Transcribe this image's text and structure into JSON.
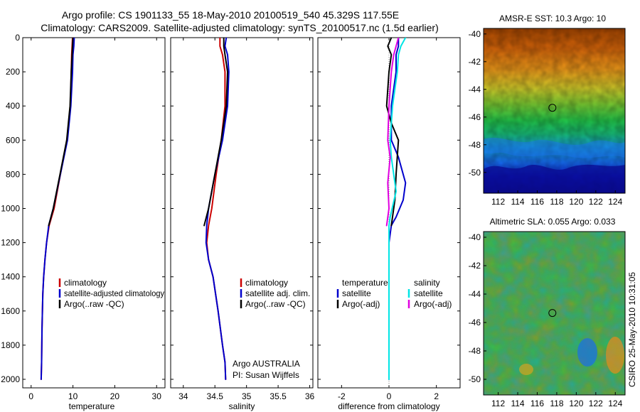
{
  "figure": {
    "title_line1": "Argo profile: CS 1901133_55 18-May-2010 20100519_540 45.329S 117.55E",
    "title_line2": "Climatology: CARS2009. Satellite-adjusted climatology: synTS_20100517.nc (1.5d earlier)",
    "side_caption": "CSIRO 25-May-2010 10:31:05"
  },
  "colors": {
    "climatology": "#cc0000",
    "satellite": "#0000cc",
    "argo": "#000000",
    "sal_satellite": "#00e5e5",
    "sal_argo": "#e000e0"
  },
  "chart_data": [
    {
      "type": "line",
      "name": "temperature-profile",
      "xlabel": "temperature",
      "ylabel": "",
      "xlim": [
        -2,
        32
      ],
      "ylim": [
        2050,
        0
      ],
      "xticks": [
        0,
        10,
        20,
        30
      ],
      "yticks": [
        0,
        200,
        400,
        600,
        800,
        1000,
        1200,
        1400,
        1600,
        1800,
        2000
      ],
      "legend": [
        "climatology",
        "satellite-adjusted climatology",
        "Argo(..raw -QC)"
      ],
      "series": [
        {
          "name": "climatology",
          "color": "#cc0000",
          "x": [
            9.9,
            9.8,
            9.7,
            9.6,
            9.4,
            8.6,
            7.0,
            5.5,
            4.3,
            3.7,
            3.3,
            3.0,
            2.8,
            2.6,
            2.5,
            2.4
          ],
          "y": [
            0,
            50,
            100,
            200,
            400,
            600,
            800,
            1000,
            1100,
            1200,
            1300,
            1400,
            1500,
            1700,
            1900,
            2000
          ]
        },
        {
          "name": "satellite-adjusted climatology",
          "color": "#0000cc",
          "x": [
            10.3,
            10.2,
            10.0,
            9.9,
            9.5,
            8.7,
            7.0,
            5.3,
            4.2,
            3.7,
            3.3,
            3.0,
            2.8,
            2.6,
            2.5,
            2.4
          ],
          "y": [
            0,
            50,
            100,
            200,
            400,
            600,
            800,
            1000,
            1100,
            1200,
            1300,
            1400,
            1500,
            1700,
            1900,
            2000
          ]
        },
        {
          "name": "Argo(..raw -QC)",
          "color": "#000000",
          "x": [
            10.0,
            9.9,
            9.8,
            9.6,
            9.3,
            8.5,
            6.9,
            5.3,
            4.2
          ],
          "y": [
            0,
            50,
            100,
            200,
            400,
            600,
            800,
            1000,
            1100
          ]
        }
      ]
    },
    {
      "type": "line",
      "name": "salinity-profile",
      "xlabel": "salinity",
      "ylabel": "",
      "xlim": [
        33.8,
        36.05
      ],
      "ylim": [
        2050,
        0
      ],
      "xticks": [
        34,
        34.5,
        35,
        35.5,
        36
      ],
      "xticklabels": [
        "34",
        "34.5",
        "35",
        "35.5",
        "36"
      ],
      "legend": [
        "climatology",
        "satellite adj. clim.",
        "Argo(..raw -QC)"
      ],
      "annotation_line1": "Argo AUSTRALIA",
      "annotation_line2": "PI: Susan Wijffels",
      "series": [
        {
          "name": "climatology",
          "color": "#cc0000",
          "x": [
            34.58,
            34.58,
            34.62,
            34.66,
            34.66,
            34.6,
            34.52,
            34.45,
            34.4,
            34.37,
            34.4,
            34.47,
            34.55,
            34.62,
            34.66,
            34.67
          ],
          "y": [
            0,
            50,
            100,
            200,
            400,
            600,
            800,
            1000,
            1100,
            1200,
            1300,
            1400,
            1600,
            1800,
            1900,
            2000
          ]
        },
        {
          "name": "satellite adj. clim.",
          "color": "#0000cc",
          "x": [
            34.68,
            34.66,
            34.7,
            34.72,
            34.7,
            34.62,
            34.5,
            34.4,
            34.37,
            34.36,
            34.4,
            34.47,
            34.55,
            34.62,
            34.66,
            34.67
          ],
          "y": [
            0,
            50,
            100,
            200,
            400,
            600,
            800,
            1000,
            1100,
            1200,
            1300,
            1400,
            1600,
            1800,
            1900,
            2000
          ]
        },
        {
          "name": "Argo(..raw -QC)",
          "color": "#000000",
          "x": [
            34.64,
            34.64,
            34.66,
            34.7,
            34.68,
            34.6,
            34.5,
            34.4,
            34.33
          ],
          "y": [
            0,
            50,
            100,
            200,
            400,
            600,
            800,
            1000,
            1100
          ]
        }
      ]
    },
    {
      "type": "line",
      "name": "difference-profile",
      "xlabel": "difference from climatology",
      "ylabel": "",
      "xlim": [
        -3,
        3
      ],
      "ylim": [
        2050,
        0
      ],
      "xticks": [
        -2,
        0,
        2
      ],
      "xticklabels": [
        "-2",
        "0",
        "2"
      ],
      "legend_temperature_title": "temperature",
      "legend_salinity_title": "salinity",
      "legend_temperature": [
        "satellite",
        "Argo(-adj)"
      ],
      "legend_salinity": [
        "satellite",
        "Argo(-adj)"
      ],
      "series": [
        {
          "name": "temperature satellite",
          "color": "#0000cc",
          "x": [
            0.4,
            0.4,
            0.3,
            0.3,
            0.1,
            0.1,
            0.4,
            0.7,
            0.6,
            0.3,
            0.1,
            0.0,
            0.0,
            0.0,
            0.0,
            0.0
          ],
          "y": [
            0,
            50,
            100,
            200,
            400,
            600,
            700,
            850,
            950,
            1050,
            1100,
            1200,
            1400,
            1600,
            1800,
            2000
          ]
        },
        {
          "name": "temperature Argo(-adj)",
          "color": "#000000",
          "x": [
            0.1,
            -0.05,
            0.1,
            0.0,
            -0.1,
            0.1,
            0.4,
            0.3,
            0.25,
            0.1
          ],
          "y": [
            0,
            50,
            100,
            200,
            400,
            500,
            600,
            800,
            950,
            1100
          ]
        },
        {
          "name": "salinity satellite",
          "color": "#00e5e5",
          "x": [
            0.7,
            0.5,
            0.4,
            0.35,
            0.15,
            0.05,
            0.1,
            0.3,
            0.05,
            0.0,
            0.0,
            0.0,
            0.0,
            0.0,
            0.0
          ],
          "y": [
            0,
            50,
            100,
            200,
            400,
            600,
            700,
            900,
            1050,
            1100,
            1200,
            1400,
            1600,
            1800,
            2000
          ]
        },
        {
          "name": "salinity Argo(-adj)",
          "color": "#e000e0",
          "x": [
            0.4,
            0.3,
            0.2,
            0.1,
            0.0,
            -0.05,
            0.05,
            -0.05,
            0.0,
            -0.1
          ],
          "y": [
            0,
            50,
            100,
            200,
            400,
            600,
            700,
            850,
            1000,
            1100
          ]
        }
      ]
    },
    {
      "type": "heatmap",
      "name": "sst-map",
      "title": "AMSR-E SST: 10.3 Argo: 10",
      "xlim": [
        110.5,
        125
      ],
      "ylim": [
        -51.5,
        -39.6
      ],
      "xticks": [
        112,
        114,
        116,
        118,
        120,
        122,
        124
      ],
      "xticklabels": [
        "112",
        "114",
        "116",
        "118",
        "120",
        "122",
        "124"
      ],
      "yticks": [
        -40,
        -42,
        -44,
        -46,
        -48,
        -50
      ],
      "yticklabels": [
        "-40",
        "-42",
        "-44",
        "-46",
        "-48",
        "-50"
      ],
      "marker": {
        "lon": 117.55,
        "lat": -45.33
      }
    },
    {
      "type": "heatmap",
      "name": "sla-map",
      "title": "Altimetric SLA: 0.055 Argo: 0.033",
      "xlim": [
        110.5,
        125
      ],
      "ylim": [
        -51.1,
        -39.6
      ],
      "xticks": [
        112,
        114,
        116,
        118,
        120,
        122,
        124
      ],
      "xticklabels": [
        "112",
        "114",
        "116",
        "118",
        "120",
        "122",
        "124"
      ],
      "yticks": [
        -40,
        -42,
        -44,
        -46,
        -48,
        -50
      ],
      "yticklabels": [
        "-40",
        "-42",
        "-44",
        "-46",
        "-48",
        "-50"
      ],
      "marker": {
        "lon": 117.55,
        "lat": -45.33
      }
    }
  ]
}
